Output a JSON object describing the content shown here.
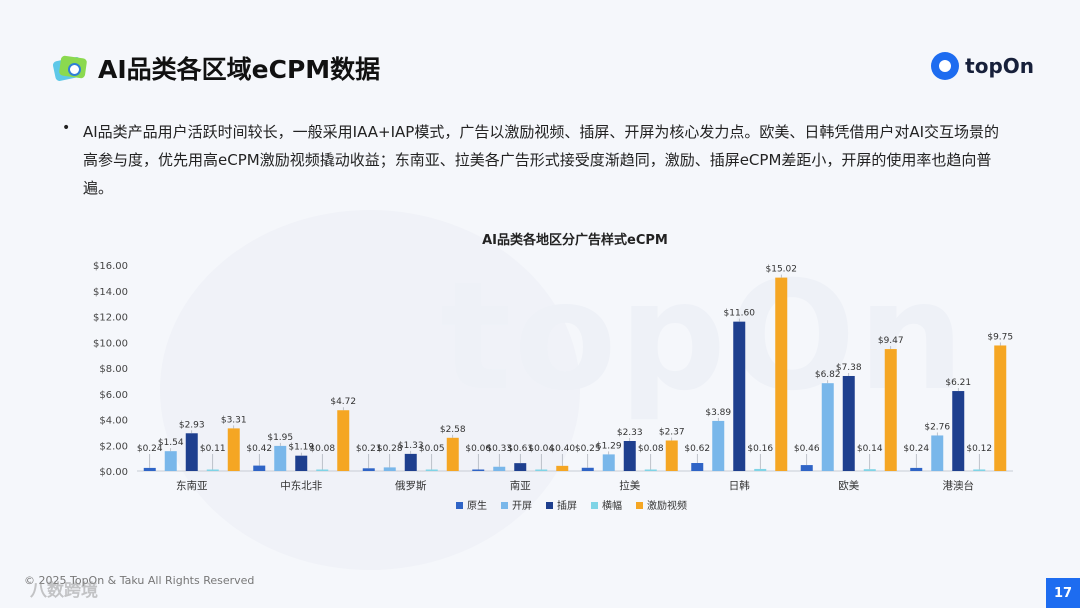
{
  "header": {
    "title": "AI品类各区域eCPM数据",
    "brand": "topOn"
  },
  "body": {
    "bullet": "•",
    "text": "AI品类产品用户活跃时间较长，一般采用IAA+IAP模式，广告以激励视频、插屏、开屏为核心发力点。欧美、日韩凭借用户对AI交互场景的高参与度，优先用高eCPM激励视频撬动收益；东南亚、拉美各广告形式接受度渐趋同，激励、插屏eCPM差距小，开屏的使用率也趋向普遍。"
  },
  "footer": {
    "copyright": "© 2025 TopOn & Taku All Rights Reserved",
    "watermark": "八数跨境",
    "page_number": "17"
  },
  "colors": {
    "accent": "#1d6cf0",
    "series": [
      "#2f64c6",
      "#79b7ea",
      "#1e3f8e",
      "#7fd4e6",
      "#f5a623"
    ]
  },
  "chart_data": {
    "type": "bar",
    "title": "AI品类各地区分广告样式eCPM",
    "categories": [
      "东南亚",
      "中东北非",
      "俄罗斯",
      "南亚",
      "拉美",
      "日韩",
      "欧美",
      "港澳台"
    ],
    "series": [
      {
        "name": "原生",
        "values": [
          0.24,
          0.42,
          0.21,
          0.06,
          0.25,
          0.62,
          0.46,
          0.24
        ],
        "labels": [
          "$0.24",
          "$0.42",
          "$0.21",
          "$0.06",
          "$0.25",
          "$0.62",
          "$0.46",
          "$0.24"
        ]
      },
      {
        "name": "开屏",
        "values": [
          1.54,
          1.95,
          0.28,
          0.33,
          1.29,
          3.89,
          6.82,
          2.76
        ],
        "labels": [
          "$1.54",
          "$1.95",
          "$0.28",
          "$0.33",
          "$1.29",
          "$3.89",
          "$6.82",
          "$2.76"
        ]
      },
      {
        "name": "插屏",
        "values": [
          2.93,
          1.19,
          1.33,
          0.61,
          2.33,
          11.6,
          7.38,
          6.21
        ],
        "labels": [
          "$2.93",
          "$1.19",
          "$1.33",
          "$0.61",
          "$2.33",
          "$11.60",
          "$7.38",
          "$6.21"
        ]
      },
      {
        "name": "横幅",
        "values": [
          0.11,
          0.08,
          0.05,
          0.04,
          0.08,
          0.16,
          0.14,
          0.12
        ],
        "labels": [
          "$0.11",
          "$0.08",
          "$0.05",
          "$0.04",
          "$0.08",
          "$0.16",
          "$0.14",
          "$0.12"
        ]
      },
      {
        "name": "激励视频",
        "values": [
          3.31,
          4.72,
          2.58,
          0.4,
          2.37,
          15.02,
          9.47,
          9.75
        ],
        "labels": [
          "$3.31",
          "$4.72",
          "$2.58",
          "$0.40",
          "$2.37",
          "$15.02",
          "$9.47",
          "$9.75"
        ]
      }
    ],
    "y_ticks": [
      "$0.00",
      "$2.00",
      "$4.00",
      "$6.00",
      "$8.00",
      "$10.00",
      "$12.00",
      "$14.00",
      "$16.00"
    ],
    "ylim": [
      0,
      16
    ],
    "grid": false,
    "legend": "bottom"
  }
}
